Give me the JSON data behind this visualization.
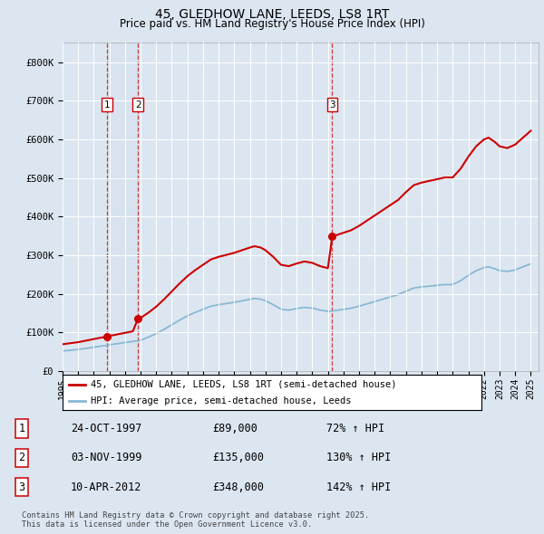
{
  "title": "45, GLEDHOW LANE, LEEDS, LS8 1RT",
  "subtitle": "Price paid vs. HM Land Registry's House Price Index (HPI)",
  "bg_color": "#dce6f1",
  "plot_bg_color": "#dce6f1",
  "red_line_color": "#cc0000",
  "blue_line_color": "#89b8d4",
  "grid_color": "#ffffff",
  "purchase_labels": [
    "1",
    "2",
    "3"
  ],
  "legend_entries": [
    "45, GLEDHOW LANE, LEEDS, LS8 1RT (semi-detached house)",
    "HPI: Average price, semi-detached house, Leeds"
  ],
  "table_data": [
    [
      "1",
      "24-OCT-1997",
      "£89,000",
      "72% ↑ HPI"
    ],
    [
      "2",
      "03-NOV-1999",
      "£135,000",
      "130% ↑ HPI"
    ],
    [
      "3",
      "10-APR-2012",
      "£348,000",
      "142% ↑ HPI"
    ]
  ],
  "footer": "Contains HM Land Registry data © Crown copyright and database right 2025.\nThis data is licensed under the Open Government Licence v3.0.",
  "ylim": [
    0,
    850000
  ],
  "yticks": [
    0,
    100000,
    200000,
    300000,
    400000,
    500000,
    600000,
    700000,
    800000
  ],
  "ytick_labels": [
    "£0",
    "£100K",
    "£200K",
    "£300K",
    "£400K",
    "£500K",
    "£600K",
    "£700K",
    "£800K"
  ],
  "purchase_years_f": [
    1997.83,
    1999.83,
    2012.28
  ],
  "purchase_prices": [
    89000,
    135000,
    348000
  ],
  "xmin": 1995,
  "xmax": 2025.5
}
